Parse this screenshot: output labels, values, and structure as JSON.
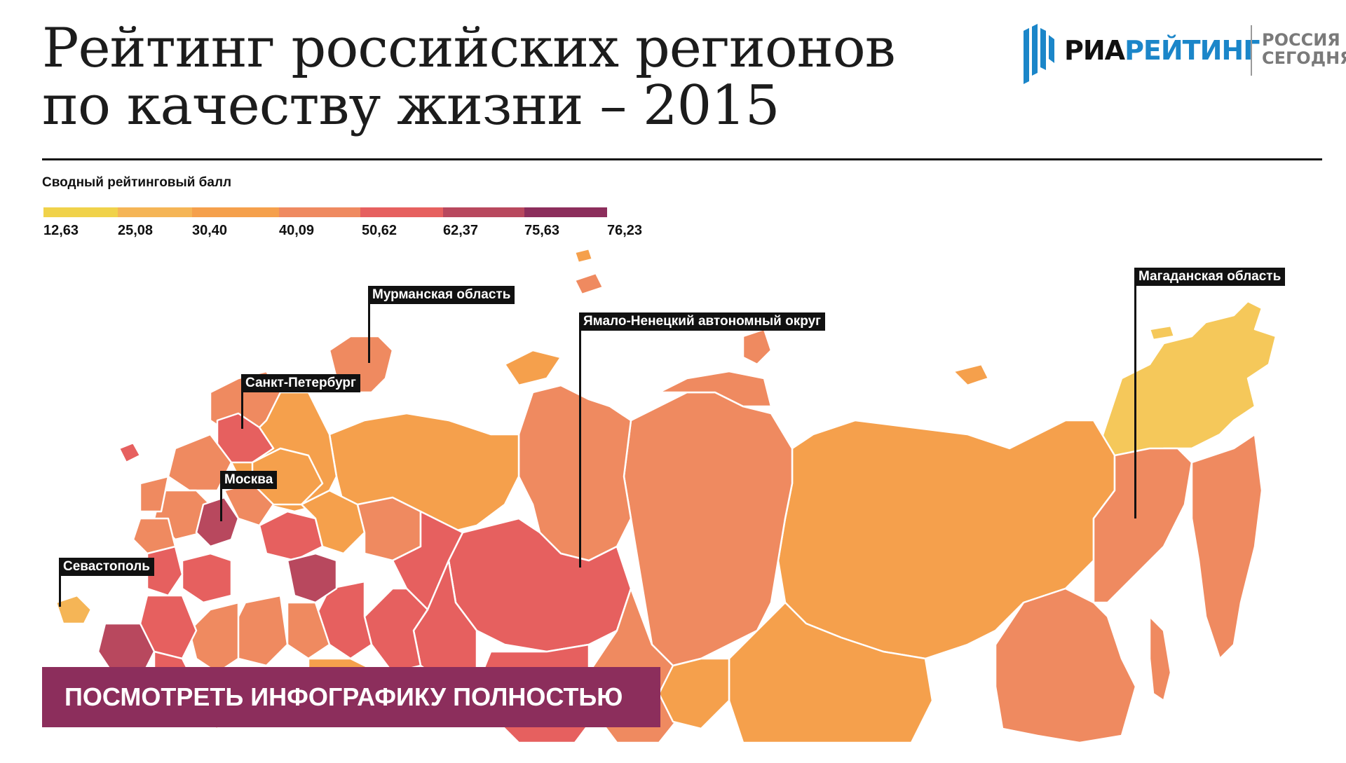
{
  "header": {
    "title_line1": "Рейтинг российских регионов",
    "title_line2": "по качеству жизни – 2015"
  },
  "logo": {
    "name_part1": "РИА",
    "name_part2": "РЕЙТИНГ",
    "sub_line1": "РОССИЯ",
    "sub_line2": "СЕГОДНЯ",
    "colors": {
      "blue": "#1b86c9",
      "grey": "#7a7a7a"
    }
  },
  "legend": {
    "title": "Сводный рейтинговый балл",
    "breaks": [
      "12,63",
      "25,08",
      "30,40",
      "40,09",
      "50,62",
      "62,37",
      "75,63",
      "76,23"
    ],
    "colors": [
      "#f0d24a",
      "#f5b556",
      "#f5a04c",
      "#ef8a60",
      "#e6605f",
      "#b8485e",
      "#8c2e5c"
    ]
  },
  "map": {
    "callouts": [
      {
        "id": "murmansk",
        "label": "Мурманская область"
      },
      {
        "id": "yamal",
        "label": "Ямало-Ненецкий автономный округ"
      },
      {
        "id": "magadan",
        "label": "Магаданская область"
      },
      {
        "id": "spb",
        "label": "Санкт-Петербург"
      },
      {
        "id": "moscow",
        "label": "Москва"
      },
      {
        "id": "sevastopol",
        "label": "Севастополь"
      }
    ]
  },
  "cta": {
    "label": "ПОСМОТРЕТЬ ИНФОГРАФИКУ ПОЛНОСТЬЮ"
  }
}
